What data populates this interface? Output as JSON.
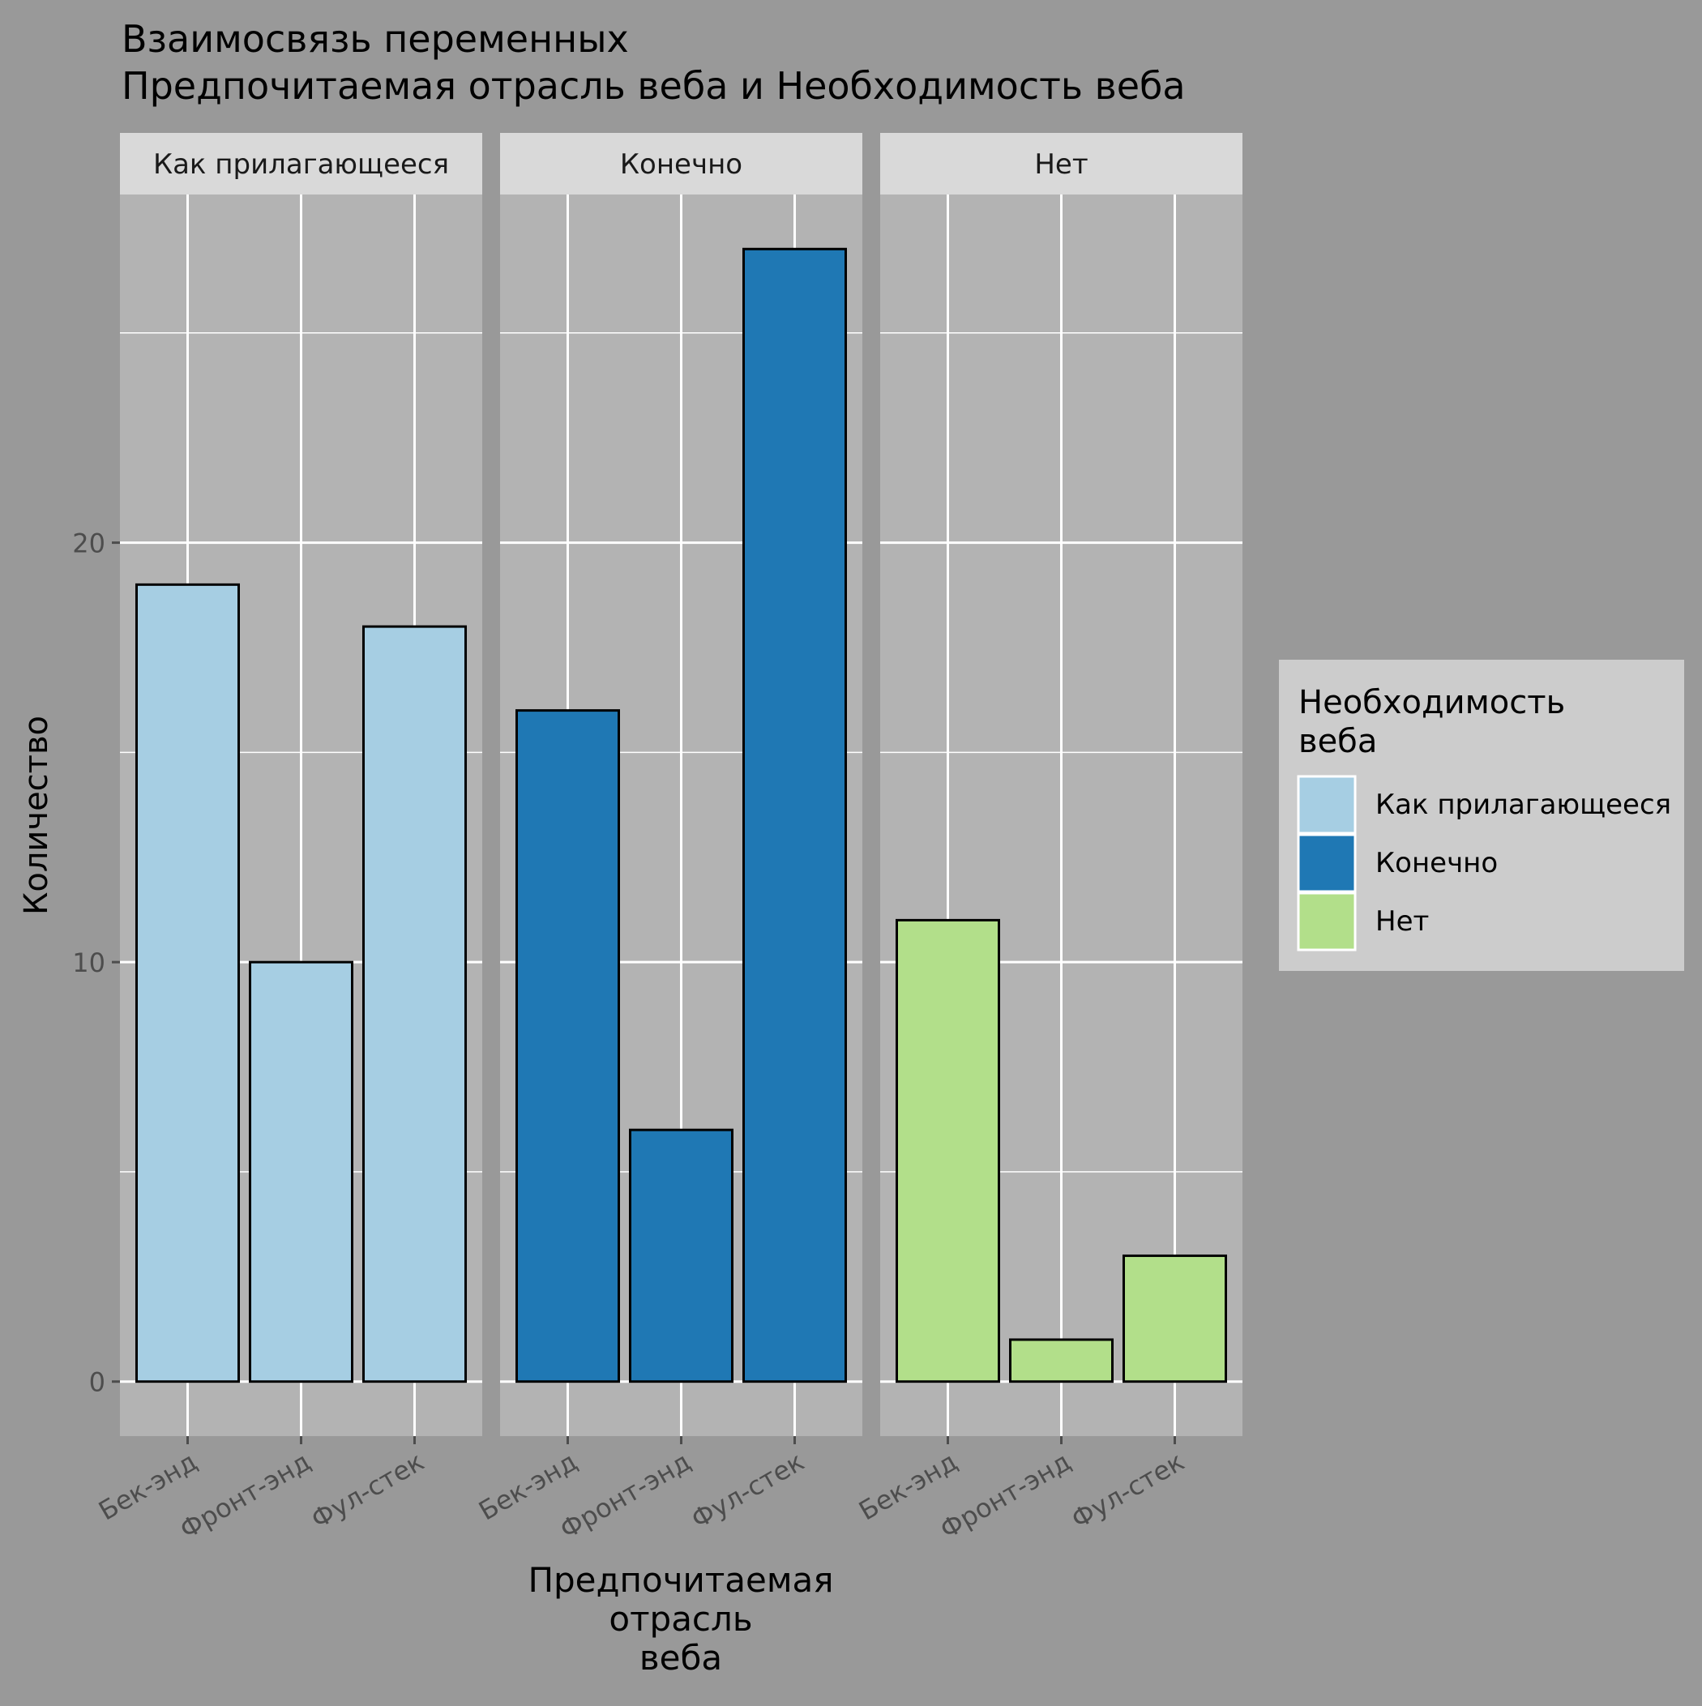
{
  "chart_data": {
    "type": "bar",
    "title_lines": [
      "Взаимосвязь переменных",
      " Предпочитаемая отрасль веба и Необходимость веба"
    ],
    "xlabel_lines": [
      "Предпочитаемая",
      "отрасль",
      "веба"
    ],
    "ylabel": "Количество",
    "categories": [
      "Бек-энд",
      "Фронт-энд",
      "Фул-стек"
    ],
    "ylim": [
      -1.3,
      28.3
    ],
    "y_ticks": [
      0,
      10,
      20
    ],
    "y_tick_labels": [
      "0",
      "10",
      "20"
    ],
    "y_minor_ticks": [
      5,
      15,
      25
    ],
    "grid": true,
    "facets": [
      {
        "label": "Как прилагающееся",
        "values": [
          19,
          10,
          18
        ],
        "color": "#a6cee3"
      },
      {
        "label": "Конечно",
        "values": [
          16,
          6,
          27
        ],
        "color": "#1f78b4"
      },
      {
        "label": "Нет",
        "values": [
          11,
          1,
          3
        ],
        "color": "#b2df8a"
      }
    ],
    "legend": {
      "title_lines": [
        "Необходимость",
        "веба"
      ],
      "placement": "right",
      "items": [
        {
          "label": "Как прилагающееся",
          "color": "#a6cee3"
        },
        {
          "label": "Конечно",
          "color": "#1f78b4"
        },
        {
          "label": "Нет",
          "color": "#b2df8a"
        }
      ]
    },
    "colors": {
      "background": "#999999",
      "panel": "#b3b3b3",
      "strip": "#d9d9d9",
      "legend_background": "#cccccc",
      "grid": "#ffffff",
      "bar_outline": "#000000",
      "axis_text": "#4d4d4d",
      "title_text": "#000000"
    }
  }
}
